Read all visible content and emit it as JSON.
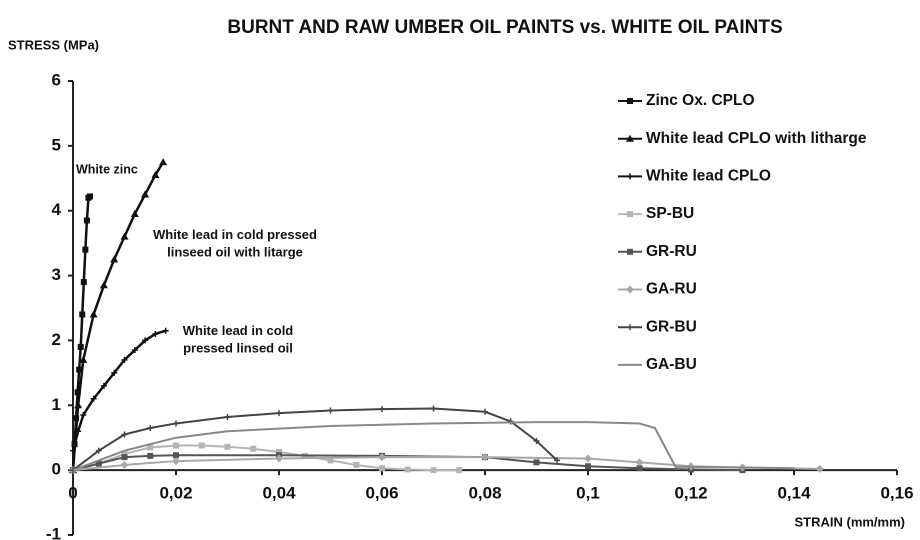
{
  "chart_data": {
    "type": "line",
    "title": "BURNT AND RAW UMBER OIL PAINTS vs. WHITE OIL PAINTS",
    "y_label": "STRESS (MPa)",
    "x_label": "STRAIN (mm/mm)",
    "xlim": [
      0,
      0.16
    ],
    "xticks": [
      0,
      {
        "value": 0.02,
        "label": "0,02"
      },
      {
        "value": 0.04,
        "label": "0,04"
      },
      {
        "value": 0.06,
        "label": "0,06"
      },
      {
        "value": 0.08,
        "label": "0,08"
      },
      {
        "value": 0.1,
        "label": "0,1"
      },
      {
        "value": 0.12,
        "label": "0,12"
      },
      {
        "value": 0.14,
        "label": "0,14"
      },
      {
        "value": 0.16,
        "label": "0,16"
      }
    ],
    "ylim": [
      -1,
      6
    ],
    "yticks": [
      -1,
      0,
      1,
      2,
      3,
      4,
      5,
      6
    ],
    "grid": false,
    "legend": "right",
    "annotations": [
      "White zinc",
      "White lead in cold pressed linseed oil with litarge",
      "White lead in cold pressed linsed oil"
    ],
    "series": [
      {
        "name": "Zinc Ox. CPLO",
        "color": "#111111",
        "marker": "square",
        "x": [
          0,
          0.0003,
          0.0006,
          0.0009,
          0.0012,
          0.0015,
          0.0018,
          0.0021,
          0.0024,
          0.0027,
          0.003,
          0.0033
        ],
        "values": [
          0,
          0.4,
          0.8,
          1.2,
          1.55,
          1.9,
          2.4,
          2.9,
          3.4,
          3.85,
          4.2,
          4.22
        ]
      },
      {
        "name": "White lead CPLO with litharge",
        "color": "#111111",
        "marker": "triangle",
        "x": [
          0,
          0.001,
          0.002,
          0.004,
          0.006,
          0.008,
          0.01,
          0.012,
          0.014,
          0.016,
          0.0175
        ],
        "values": [
          0,
          1.0,
          1.7,
          2.4,
          2.85,
          3.25,
          3.6,
          3.95,
          4.25,
          4.55,
          4.75
        ]
      },
      {
        "name": "White lead CPLO",
        "color": "#111111",
        "marker": "plus",
        "x": [
          0,
          0.001,
          0.002,
          0.004,
          0.006,
          0.008,
          0.01,
          0.012,
          0.014,
          0.016,
          0.018
        ],
        "values": [
          0.3,
          0.6,
          0.85,
          1.1,
          1.3,
          1.5,
          1.7,
          1.85,
          2.0,
          2.1,
          2.15
        ]
      },
      {
        "name": "SP-BU",
        "color": "#b5b5b5",
        "marker": "square",
        "x": [
          0,
          0.005,
          0.01,
          0.015,
          0.02,
          0.025,
          0.03,
          0.035,
          0.04,
          0.045,
          0.05,
          0.055,
          0.06,
          0.065,
          0.07,
          0.075
        ],
        "values": [
          0,
          0.1,
          0.25,
          0.35,
          0.38,
          0.38,
          0.36,
          0.33,
          0.28,
          0.22,
          0.15,
          0.08,
          0.03,
          0.01,
          0,
          0
        ]
      },
      {
        "name": "GR-RU",
        "color": "#555555",
        "marker": "square",
        "x": [
          0,
          0.005,
          0.01,
          0.015,
          0.02,
          0.04,
          0.06,
          0.08,
          0.09,
          0.1,
          0.11,
          0.12,
          0.13
        ],
        "values": [
          0,
          0.1,
          0.2,
          0.22,
          0.23,
          0.23,
          0.22,
          0.2,
          0.12,
          0.06,
          0.03,
          0.01,
          0
        ]
      },
      {
        "name": "GA-RU",
        "color": "#a8a8a8",
        "marker": "diamond",
        "x": [
          0,
          0.01,
          0.02,
          0.04,
          0.06,
          0.08,
          0.1,
          0.11,
          0.12,
          0.13,
          0.145
        ],
        "values": [
          0,
          0.08,
          0.14,
          0.18,
          0.2,
          0.2,
          0.18,
          0.12,
          0.06,
          0.04,
          0.02
        ]
      },
      {
        "name": "GR-BU",
        "color": "#444444",
        "marker": "plus",
        "x": [
          0,
          0.005,
          0.01,
          0.015,
          0.02,
          0.03,
          0.04,
          0.05,
          0.06,
          0.07,
          0.08,
          0.085,
          0.09,
          0.094
        ],
        "values": [
          0,
          0.3,
          0.55,
          0.65,
          0.72,
          0.82,
          0.88,
          0.92,
          0.94,
          0.95,
          0.9,
          0.75,
          0.45,
          0.15
        ]
      },
      {
        "name": "GA-BU",
        "color": "#888888",
        "marker": "none",
        "x": [
          0,
          0.01,
          0.02,
          0.03,
          0.05,
          0.07,
          0.09,
          0.1,
          0.11,
          0.113,
          0.117,
          0.12,
          0.14
        ],
        "values": [
          0,
          0.3,
          0.5,
          0.6,
          0.68,
          0.72,
          0.74,
          0.74,
          0.72,
          0.65,
          0.05,
          0.05,
          0.03
        ]
      }
    ]
  }
}
